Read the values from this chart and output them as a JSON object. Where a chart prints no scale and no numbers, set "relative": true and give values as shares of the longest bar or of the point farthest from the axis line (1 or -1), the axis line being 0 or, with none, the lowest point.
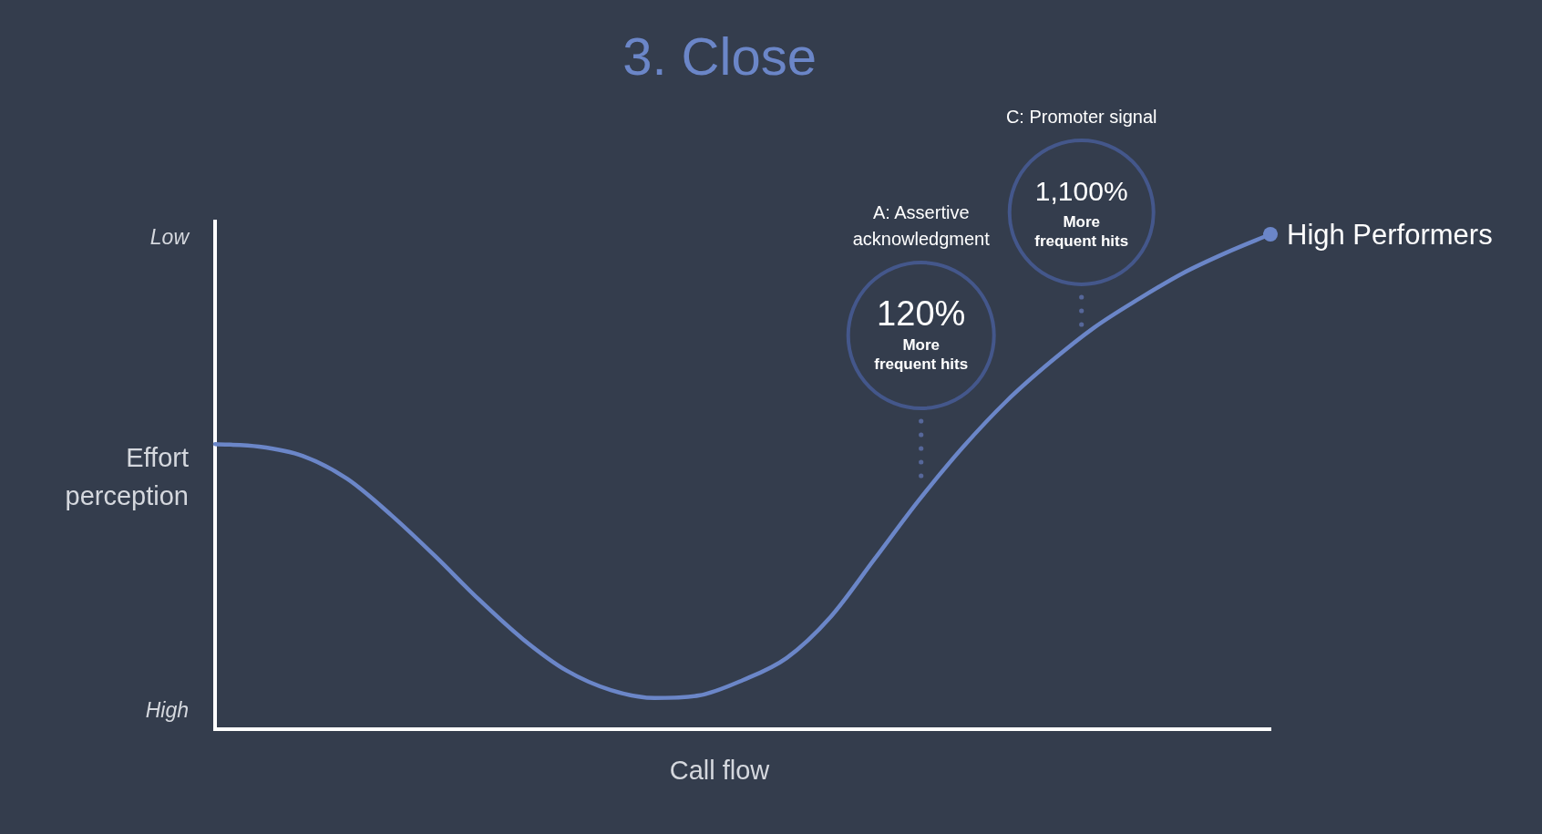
{
  "chart_data": {
    "type": "line",
    "title": "3. Close",
    "xlabel": "Call flow",
    "ylabel": "Effort perception",
    "relative": true,
    "categories": [
      null,
      null,
      null,
      null,
      null,
      null,
      null,
      null,
      null,
      null,
      null,
      null,
      null,
      null,
      null,
      null,
      null,
      null,
      null,
      null,
      null,
      null,
      null,
      null,
      null
    ],
    "series": [
      {
        "name": "High Performers",
        "color": "#6b86c8",
        "values": [
          0.576,
          0.571,
          0.552,
          0.506,
          0.433,
          0.35,
          0.262,
          0.182,
          0.118,
          0.079,
          0.063,
          0.068,
          0.099,
          0.144,
          0.227,
          0.344,
          0.462,
          0.569,
          0.663,
          0.742,
          0.812,
          0.869,
          0.921,
          0.963,
          1.0
        ]
      }
    ],
    "line_style": "solid",
    "annotations": [
      "Low",
      "High",
      "A: Assertive acknowledgment",
      "120%",
      "More frequent hits",
      "C: Promoter signal",
      "1,100%",
      "More frequent hits"
    ]
  }
}
